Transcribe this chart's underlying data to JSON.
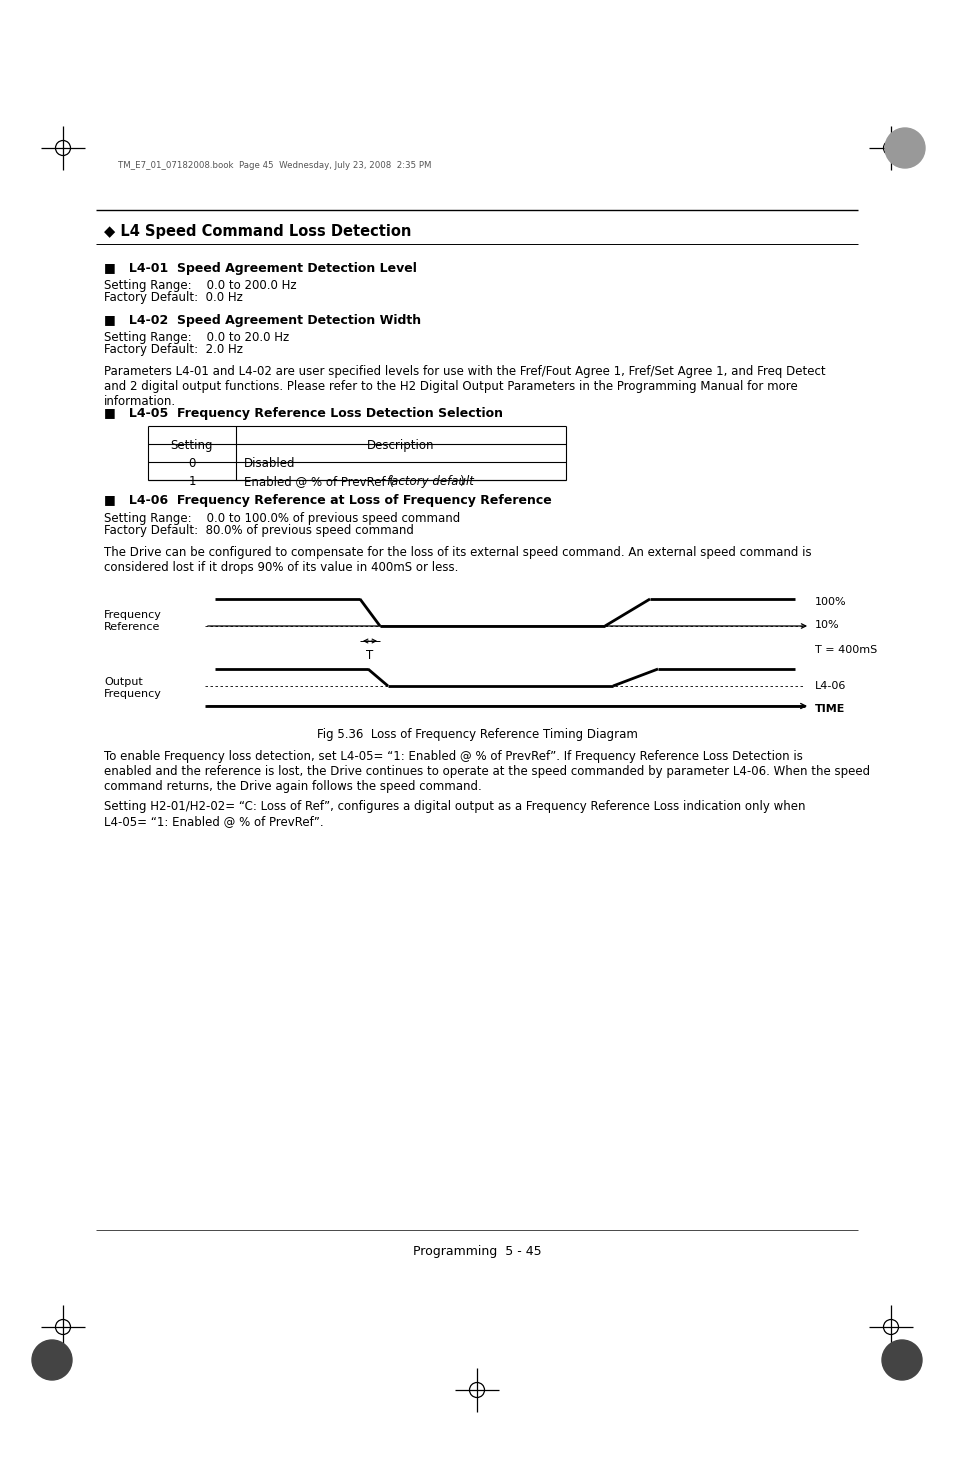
{
  "title": "◆ L4 Speed Command Loss Detection",
  "header_text": "TM_E7_01_07182008.book  Page 45  Wednesday, July 23, 2008  2:35 PM",
  "section1_title": "■   L4-01  Speed Agreement Detection Level",
  "section1_line1": "Setting Range:    0.0 to 200.0 Hz",
  "section1_line2": "Factory Default:  0.0 Hz",
  "section2_title": "■   L4-02  Speed Agreement Detection Width",
  "section2_line1": "Setting Range:    0.0 to 20.0 Hz",
  "section2_line2": "Factory Default:  2.0 Hz",
  "param_text": "Parameters L4-01 and L4-02 are user specified levels for use with the Fref/Fout Agree 1, Fref/Set Agree 1, and Freq Detect\nand 2 digital output functions. Please refer to the H2 Digital Output Parameters in the Programming Manual for more\ninformation.",
  "section3_title": "■   L4-05  Frequency Reference Loss Detection Selection",
  "section4_title": "■   L4-06  Frequency Reference at Loss of Frequency Reference",
  "section4_line1": "Setting Range:    0.0 to 100.0% of previous speed command",
  "section4_line2": "Factory Default:  80.0% of previous speed command",
  "drive_text": "The Drive can be configured to compensate for the loss of its external speed command. An external speed command is\nconsidered lost if it drops 90% of its value in 400mS or less.",
  "fig_caption": "Fig 5.36  Loss of Frequency Reference Timing Diagram",
  "para_text1": "To enable Frequency loss detection, set L4-05= “1: Enabled @ % of PrevRef”. If Frequency Reference Loss Detection is\nenabled and the reference is lost, the Drive continues to operate at the speed commanded by parameter L4-06. When the speed\ncommand returns, the Drive again follows the speed command.",
  "para_text2": "Setting H2-01/H2-02= “C: Loss of Ref”, configures a digital output as a Frequency Reference Loss indication only when\nL4-05= “1: Enabled @ % of PrevRef”.",
  "footer_text": "Programming  5 - 45",
  "bg_color": "#ffffff"
}
